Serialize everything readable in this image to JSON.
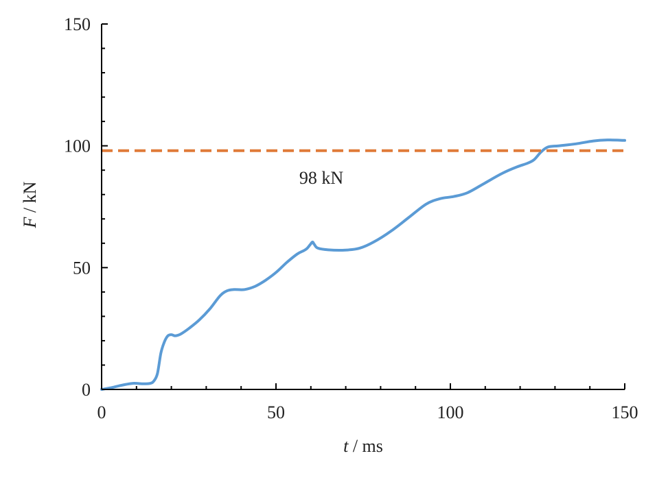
{
  "chart_data": {
    "type": "line",
    "title": "",
    "xlabel": {
      "var": "t",
      "unit": " / ms"
    },
    "ylabel": {
      "var": "F",
      "unit": " / kN"
    },
    "xlim": [
      0,
      150
    ],
    "ylim": [
      0,
      150
    ],
    "x_ticks": [
      0,
      50,
      100,
      150
    ],
    "y_ticks": [
      0,
      50,
      100,
      150
    ],
    "x_minor_step": 10,
    "y_minor_step": 10,
    "grid": false,
    "legend": "none",
    "series": [
      {
        "color": "#5b9bd5",
        "style": "solid",
        "x": [
          0,
          3,
          6,
          9,
          12,
          14,
          15,
          16,
          17,
          18,
          19,
          20,
          21,
          22,
          23,
          25,
          28,
          31,
          34,
          36,
          38,
          41,
          44,
          47,
          50,
          53,
          56,
          58,
          59,
          60,
          60.5,
          61,
          62,
          65,
          70,
          74,
          78,
          83,
          88,
          93,
          97,
          101,
          105,
          110,
          115,
          119,
          122,
          124,
          126,
          128,
          131,
          136,
          141,
          145,
          150
        ],
        "y": [
          0,
          0.8,
          1.8,
          2.5,
          2.3,
          2.5,
          3.5,
          6.5,
          15,
          19.5,
          22,
          22.5,
          22,
          22.3,
          23,
          25,
          28.5,
          33,
          38.5,
          40.5,
          41,
          41,
          42.3,
          44.8,
          48,
          52,
          55.5,
          57,
          58,
          59.8,
          60.5,
          59.5,
          58,
          57.3,
          57.2,
          58,
          60.5,
          65,
          70.5,
          76,
          78.3,
          79.2,
          80.8,
          84.8,
          88.8,
          91.3,
          92.8,
          94.3,
          97.5,
          99.5,
          100,
          100.8,
          102,
          102.4,
          102.2
        ]
      },
      {
        "color": "#e07b39",
        "style": "dashed",
        "x": [
          0,
          150
        ],
        "y": [
          98,
          98
        ]
      }
    ],
    "annotations": [
      {
        "text": "98 kN",
        "x": 63,
        "y": 87
      }
    ]
  }
}
